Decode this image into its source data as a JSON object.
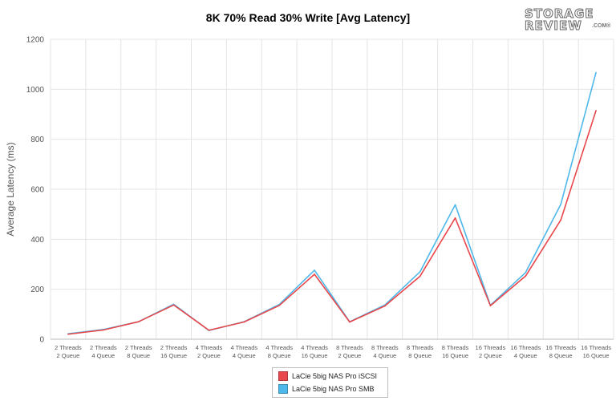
{
  "title": "8K 70% Read 30% Write [Avg Latency]",
  "watermark": {
    "line1": "STORAGE",
    "line2": "REVIEW",
    "suffix": ".COM®"
  },
  "chart_data": {
    "type": "line",
    "title": "8K 70% Read 30% Write [Avg Latency]",
    "xlabel": "",
    "ylabel": "Average Latency (ms)",
    "ylim": [
      0,
      1200
    ],
    "yticks": [
      0,
      200,
      400,
      600,
      800,
      1000,
      1200
    ],
    "grid": true,
    "legend_position": "bottom-center",
    "categories": [
      [
        "2 Threads",
        "2 Queue"
      ],
      [
        "2 Threads",
        "4 Queue"
      ],
      [
        "2 Threads",
        "8 Queue"
      ],
      [
        "2 Threads",
        "16 Queue"
      ],
      [
        "4 Threads",
        "2 Queue"
      ],
      [
        "4 Threads",
        "4 Queue"
      ],
      [
        "4 Threads",
        "8 Queue"
      ],
      [
        "4 Threads",
        "16 Queue"
      ],
      [
        "8 Threads",
        "2 Queue"
      ],
      [
        "8 Threads",
        "4 Queue"
      ],
      [
        "8 Threads",
        "8 Queue"
      ],
      [
        "8 Threads",
        "16 Queue"
      ],
      [
        "16 Threads",
        "2 Queue"
      ],
      [
        "16 Threads",
        "4 Queue"
      ],
      [
        "16 Threads",
        "8 Queue"
      ],
      [
        "16 Threads",
        "16 Queue"
      ]
    ],
    "series": [
      {
        "name": "LaCie 5big NAS Pro iSCSI",
        "color": "#e8474c",
        "values": [
          20,
          37,
          70,
          137,
          36,
          69,
          135,
          260,
          69,
          133,
          252,
          485,
          134,
          253,
          477,
          915
        ]
      },
      {
        "name": "LaCie 5big NAS Pro SMB",
        "color": "#4fb8ea",
        "values": [
          22,
          39,
          70,
          140,
          35,
          70,
          139,
          276,
          70,
          137,
          270,
          538,
          136,
          267,
          540,
          1067
        ]
      }
    ]
  }
}
